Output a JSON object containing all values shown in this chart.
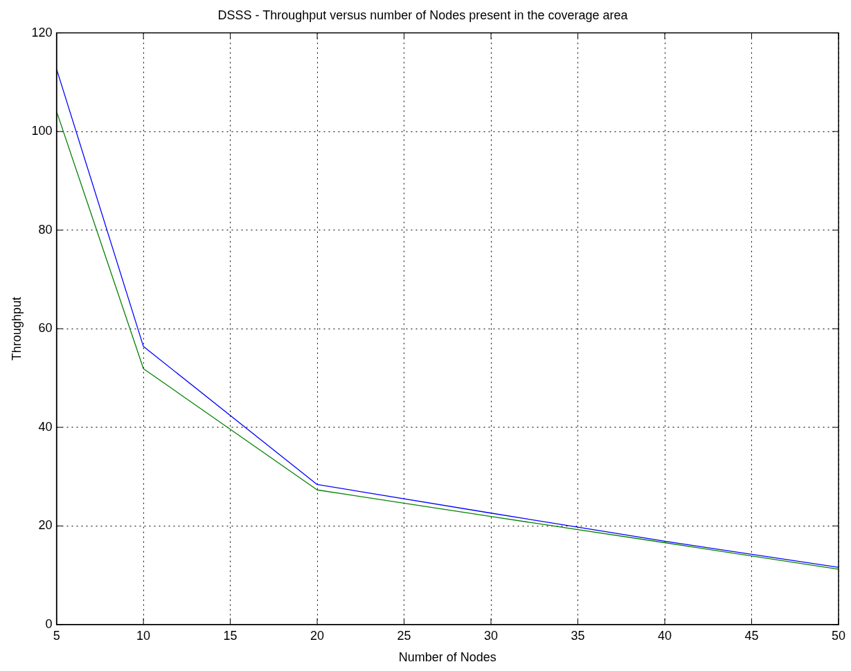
{
  "chart_data": {
    "type": "line",
    "title": "DSSS - Throughput versus number of Nodes present in the coverage area",
    "xlabel": "Number of Nodes",
    "ylabel": "Throughput",
    "x": [
      5,
      10,
      20,
      30,
      40,
      50
    ],
    "series": [
      {
        "color": "#0000ff",
        "values": [
          112.7,
          56.4,
          28.4,
          22.6,
          16.9,
          11.6
        ]
      },
      {
        "color": "#008000",
        "values": [
          104.1,
          51.9,
          27.3,
          21.9,
          16.6,
          11.2
        ]
      }
    ],
    "xlim": [
      5,
      50
    ],
    "xticks": [
      5,
      10,
      15,
      20,
      25,
      30,
      35,
      40,
      45,
      50
    ],
    "ylim": [
      0,
      120
    ],
    "yticks": [
      0,
      20,
      40,
      60,
      80,
      100,
      120
    ],
    "grid": true,
    "legend": false,
    "marker": "none",
    "line_style": "solid"
  }
}
